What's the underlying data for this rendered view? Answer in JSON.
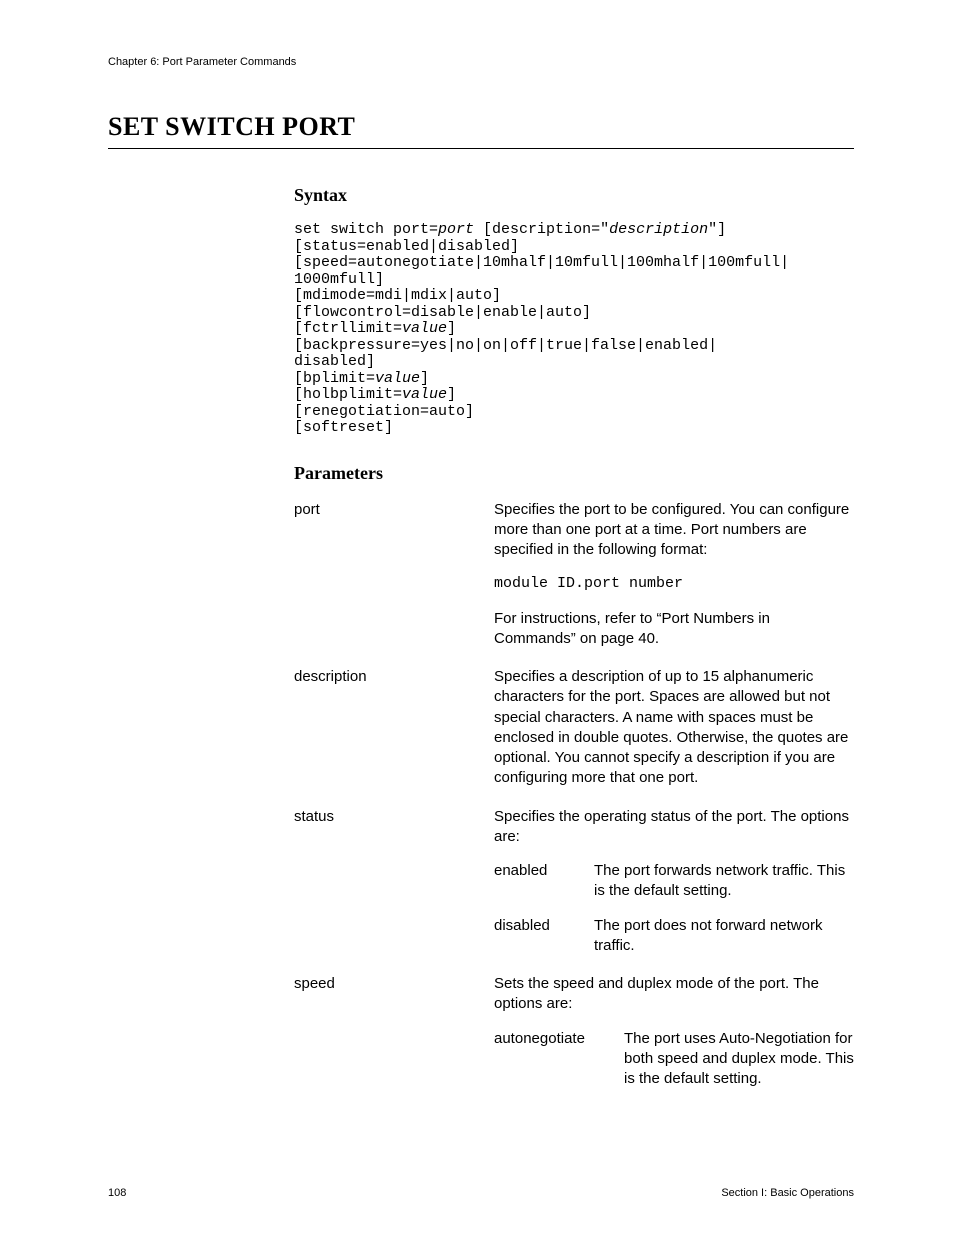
{
  "chapter": "Chapter 6: Port Parameter Commands",
  "title": "SET SWITCH PORT",
  "syntax_hdr": "Syntax",
  "syntax": {
    "l1a": "set switch port=",
    "l1b": "port",
    "l1c": " [description=\"",
    "l1d": "description",
    "l1e": "\"]",
    "l2": "[status=enabled|disabled]",
    "l3": "[speed=autonegotiate|10mhalf|10mfull|100mhalf|100mfull|",
    "l4": "1000mfull]",
    "l5": "[mdimode=mdi|mdix|auto]",
    "l6": "[flowcontrol=disable|enable|auto]",
    "l7a": "[fctrllimit=",
    "l7b": "value",
    "l7c": "]",
    "l8": "[backpressure=yes|no|on|off|true|false|enabled|",
    "l9": "disabled]",
    "l10a": "[bplimit=",
    "l10b": "value",
    "l10c": "]",
    "l11a": "[holbplimit=",
    "l11b": "value",
    "l11c": "]",
    "l12": "[renegotiation=auto]",
    "l13": "[softreset]"
  },
  "params_hdr": "Parameters",
  "params": {
    "port": {
      "name": "port",
      "d1": "Specifies the port to be configured. You can configure more than one port at a time. Port numbers are specified in the following format:",
      "d2": "module ID.port number",
      "d3": "For instructions, refer to “Port Numbers in Commands” on page 40."
    },
    "description": {
      "name": "description",
      "d1": "Specifies a description of up to 15 alphanumeric characters for the port. Spaces are allowed but not special characters. A name with spaces must be enclosed in double quotes. Otherwise, the quotes are optional. You cannot specify a description if you are configuring more that one port."
    },
    "status": {
      "name": "status",
      "d1": "Specifies the operating status of the port. The options are:",
      "opt1k": "enabled",
      "opt1v": "The port forwards network traffic. This is the default setting.",
      "opt2k": "disabled",
      "opt2v": "The port does not forward network traffic."
    },
    "speed": {
      "name": "speed",
      "d1": "Sets the speed and duplex mode of the port. The options are:",
      "opt1k": "autonegotiate",
      "opt1v": "The port uses Auto-Negotiation for both speed and duplex mode. This is the default setting."
    }
  },
  "footer": {
    "page": "108",
    "section": "Section I: Basic Operations"
  }
}
